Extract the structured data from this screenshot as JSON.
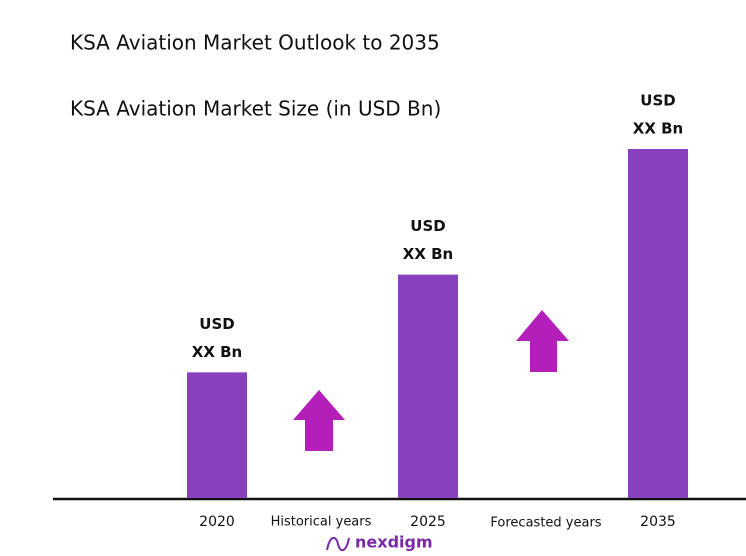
{
  "chart_data": {
    "type": "bar",
    "title": "KSA Aviation Market Outlook to 2035",
    "subtitle": "KSA Aviation Market Size (in USD Bn)",
    "categories": [
      "2020",
      "2025",
      "2035"
    ],
    "values": [
      36,
      64,
      100
    ],
    "value_labels": [
      [
        "USD",
        "XX Bn"
      ],
      [
        "USD",
        "XX Bn"
      ],
      [
        "USD",
        "XX Bn"
      ]
    ],
    "color": "#8940bf",
    "annotations": [
      "Historical years",
      "Forecasted years"
    ],
    "arrow_color": "#b31fb8",
    "logo": "nexdigm"
  }
}
